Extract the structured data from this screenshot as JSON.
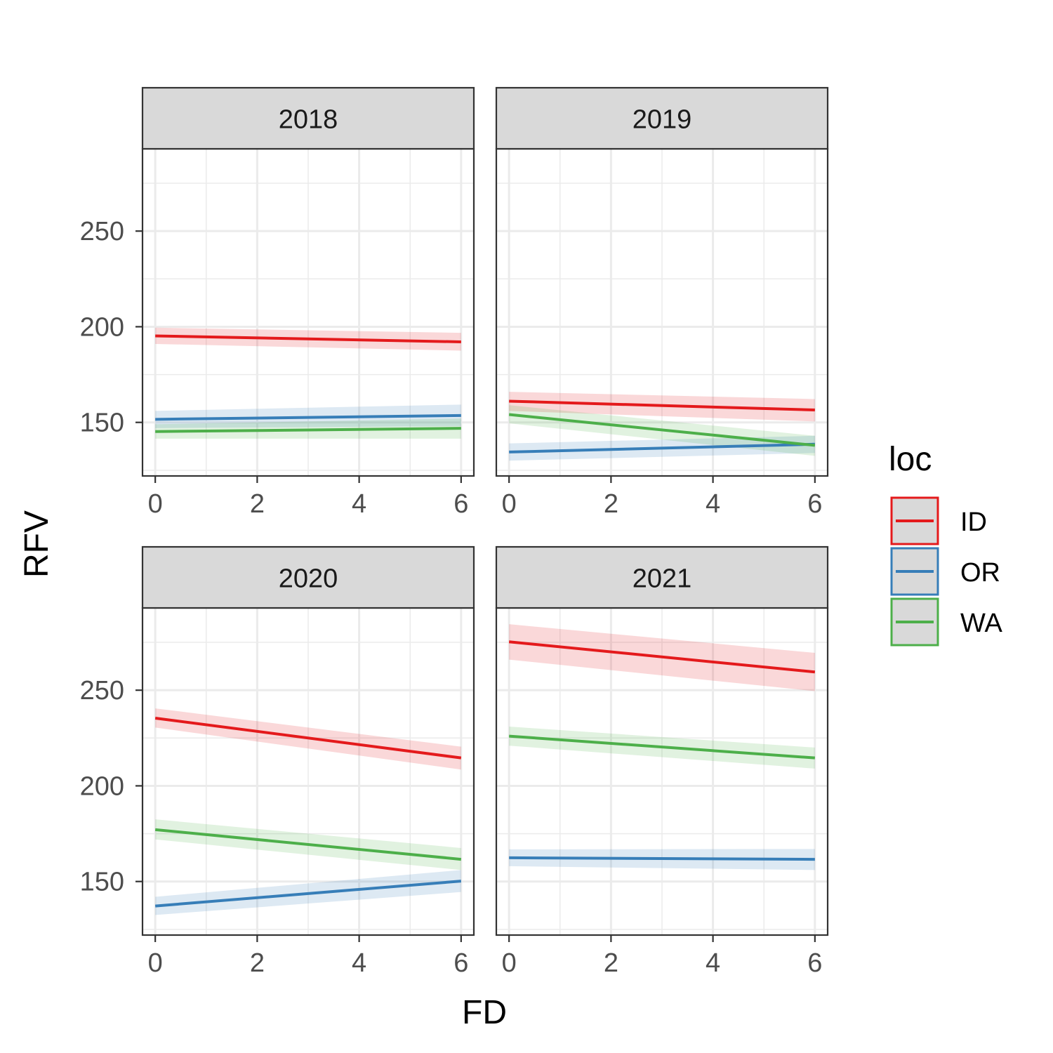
{
  "chart_data": {
    "type": "line",
    "xlabel": "FD",
    "ylabel": "RFV",
    "xlim": [
      -0.25,
      6.25
    ],
    "ylim": [
      122,
      293
    ],
    "x_ticks": [
      "0",
      "2",
      "4",
      "6"
    ],
    "y_ticks": [
      "150",
      "200",
      "250"
    ],
    "grid": true,
    "legend": {
      "title": "loc",
      "position": "right",
      "items": [
        {
          "key": "ID",
          "label": "ID",
          "color": "#e41a1c"
        },
        {
          "key": "OR",
          "label": "OR",
          "color": "#377eb8"
        },
        {
          "key": "WA",
          "label": "WA",
          "color": "#4daf4a"
        }
      ]
    },
    "panels": [
      {
        "title": "2018",
        "series": [
          {
            "name": "ID",
            "x": [
              0,
              6
            ],
            "y": [
              195.2,
              192.1
            ],
            "ci_low": [
              191,
              187.5
            ],
            "ci_high": [
              199.5,
              196.8
            ]
          },
          {
            "name": "OR",
            "x": [
              0,
              6
            ],
            "y": [
              151.6,
              153.6
            ],
            "ci_low": [
              147,
              148
            ],
            "ci_high": [
              156,
              159.3
            ]
          },
          {
            "name": "WA",
            "x": [
              0,
              6
            ],
            "y": [
              145.2,
              146.9
            ],
            "ci_low": [
              141.5,
              141.5
            ],
            "ci_high": [
              149,
              152
            ]
          }
        ]
      },
      {
        "title": "2019",
        "series": [
          {
            "name": "ID",
            "x": [
              0,
              6
            ],
            "y": [
              161.1,
              156.5
            ],
            "ci_low": [
              156,
              150.5
            ],
            "ci_high": [
              166,
              162.2
            ]
          },
          {
            "name": "OR",
            "x": [
              0,
              6
            ],
            "y": [
              134.5,
              138.6
            ],
            "ci_low": [
              130,
              134
            ],
            "ci_high": [
              139,
              143
            ]
          },
          {
            "name": "WA",
            "x": [
              0,
              6
            ],
            "y": [
              154.1,
              138
            ],
            "ci_low": [
              149.5,
              132.5
            ],
            "ci_high": [
              159,
              143
            ]
          }
        ]
      },
      {
        "title": "2020",
        "series": [
          {
            "name": "ID",
            "x": [
              0,
              6
            ],
            "y": [
              235.4,
              214.6
            ],
            "ci_low": [
              230.5,
              208.5
            ],
            "ci_high": [
              240.5,
              220.5
            ]
          },
          {
            "name": "OR",
            "x": [
              0,
              6
            ],
            "y": [
              137.2,
              150.2
            ],
            "ci_low": [
              132.5,
              144.5
            ],
            "ci_high": [
              142,
              156
            ]
          },
          {
            "name": "WA",
            "x": [
              0,
              6
            ],
            "y": [
              177.1,
              161.6
            ],
            "ci_low": [
              172,
              156
            ],
            "ci_high": [
              182.5,
              167.5
            ]
          }
        ]
      },
      {
        "title": "2021",
        "series": [
          {
            "name": "ID",
            "x": [
              0,
              6
            ],
            "y": [
              275.3,
              259.5
            ],
            "ci_low": [
              266,
              249.5
            ],
            "ci_high": [
              284.5,
              269.5
            ]
          },
          {
            "name": "OR",
            "x": [
              0,
              6
            ],
            "y": [
              162.4,
              161.6
            ],
            "ci_low": [
              158,
              156
            ],
            "ci_high": [
              166.8,
              167
            ]
          },
          {
            "name": "WA",
            "x": [
              0,
              6
            ],
            "y": [
              226,
              214.6
            ],
            "ci_low": [
              221,
              209
            ],
            "ci_high": [
              231,
              220
            ]
          }
        ]
      }
    ]
  }
}
